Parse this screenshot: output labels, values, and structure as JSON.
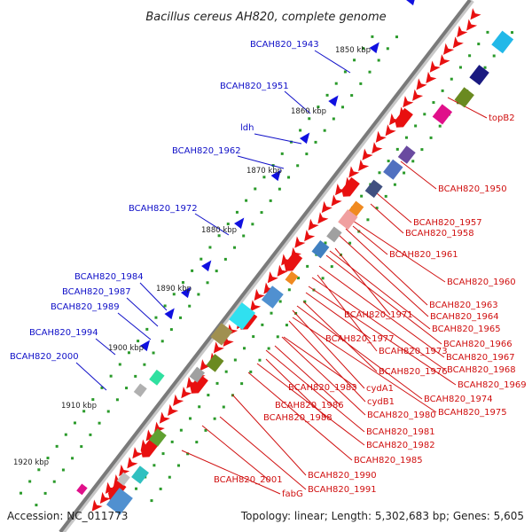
{
  "title": "Bacillus cereus AH820, complete genome",
  "footer": {
    "accession": "Accession: NC_011773",
    "topology": "Topology: linear; Length: 5,302,683 bp; Genes: 5,605"
  },
  "kbp_ticks": [
    "1850 kbp",
    "1860 kbp",
    "1870 kbp",
    "1880 kbp",
    "1890 kbp",
    "1900 kbp",
    "1910 kbp",
    "1920 kbp"
  ],
  "labels_left": [
    "BCAH820_1943",
    "BCAH820_1951",
    "ldh",
    "BCAH820_1962",
    "BCAH820_1972",
    "BCAH820_1984",
    "BCAH820_1987",
    "BCAH820_1989",
    "BCAH820_1994",
    "BCAH820_2000"
  ],
  "labels_right": [
    "topB2",
    "BCAH820_1950",
    "BCAH820_1957",
    "BCAH820_1958",
    "BCAH820_1961",
    "BCAH820_1960",
    "BCAH820_1963",
    "BCAH820_1971",
    "BCAH820_1964",
    "BCAH820_1965",
    "BCAH820_1977",
    "BCAH820_1966",
    "BCAH820_1973",
    "BCAH820_1967",
    "BCAH820_1976",
    "BCAH820_1968",
    "BCAH820_1969",
    "BCAH820_1983",
    "cydA1",
    "BCAH820_1974",
    "BCAH820_1986",
    "cydB1",
    "BCAH820_1975",
    "BCAH820_1988",
    "BCAH820_1980",
    "BCAH820_1981",
    "BCAH820_1982",
    "BCAH820_1985",
    "BCAH820_1990",
    "BCAH820_2001",
    "BCAH820_1991",
    "fabG"
  ],
  "colors": {
    "backbone": "#8a8a8a",
    "forward_gene": "#e81010",
    "reverse_gene": "#1010e0",
    "label_blue": "#1010c8",
    "label_red": "#d01010",
    "tick_dot": "#2a9a2a"
  }
}
